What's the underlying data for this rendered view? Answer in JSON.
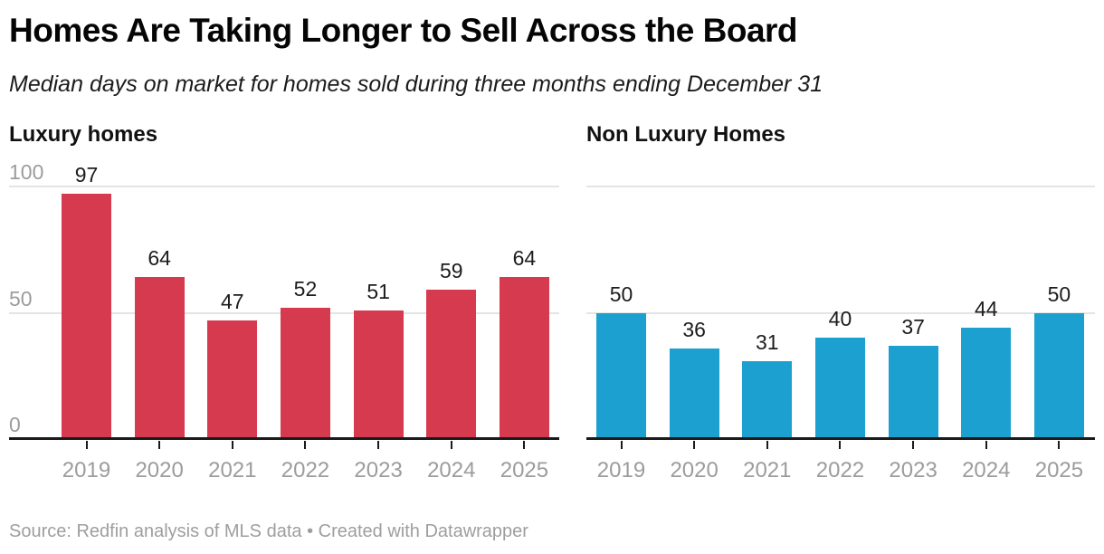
{
  "header": {
    "title": "Homes Are Taking Longer to Sell Across the Board",
    "subtitle": "Median days on market for homes sold during three months ending December 31"
  },
  "chart_data": [
    {
      "type": "bar",
      "title": "Luxury homes",
      "categories": [
        "2019",
        "2020",
        "2021",
        "2022",
        "2023",
        "2024",
        "2025"
      ],
      "values": [
        97,
        64,
        47,
        52,
        51,
        59,
        64
      ],
      "ylim": [
        0,
        100
      ],
      "yticks": [
        0,
        50,
        100
      ],
      "show_ytick_labels": true,
      "bar_color": "#d63a4e",
      "grid": true,
      "legend": "none",
      "value_labels": true
    },
    {
      "type": "bar",
      "title": "Non Luxury Homes",
      "categories": [
        "2019",
        "2020",
        "2021",
        "2022",
        "2023",
        "2024",
        "2025"
      ],
      "values": [
        50,
        36,
        31,
        40,
        37,
        44,
        50
      ],
      "ylim": [
        0,
        100
      ],
      "yticks": [
        0,
        50,
        100
      ],
      "show_ytick_labels": false,
      "bar_color": "#1ca0cf",
      "grid": true,
      "legend": "none",
      "value_labels": true
    }
  ],
  "footer": {
    "source": "Source: Redfin analysis of MLS data • Created with Datawrapper"
  },
  "colors": {
    "luxury_bar": "#d63a4e",
    "non_luxury_bar": "#1ca0cf",
    "grid_line": "#e4e4e4",
    "axis_line": "#1a1a1a",
    "muted_text": "#9c9c9c",
    "value_text": "#1c1c1c",
    "title_text": "#050505"
  }
}
